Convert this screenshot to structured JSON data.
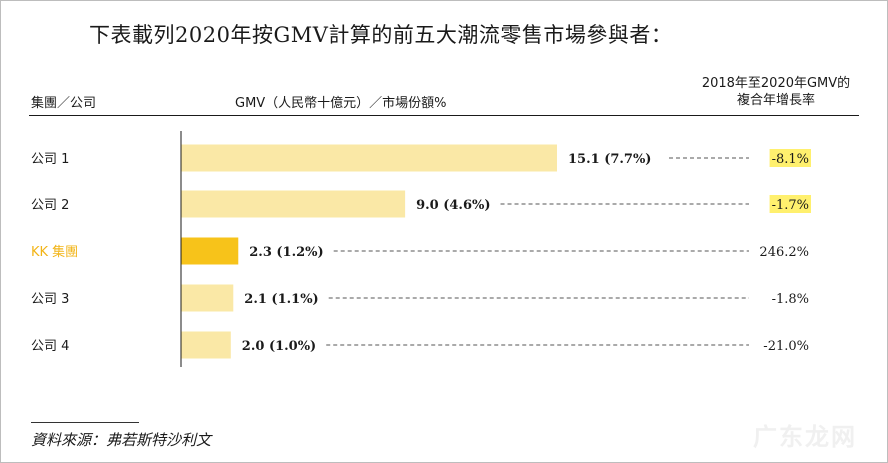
{
  "title": "下表載列2020年按GMV計算的前五大潮流零售市場參與者：",
  "headers": {
    "group": "集團／公司",
    "gmv": "GMV（人民幣十億元）／市場份額%",
    "cagr_line1": "2018年至2020年GMV的",
    "cagr_line2": "複合年增長率"
  },
  "colors": {
    "bar": "#fae8a6",
    "bar_highlight": "#f7c31a",
    "highlight_label": "#f2b417",
    "cagr_highlight_bg": "#fff06e"
  },
  "chart_data": {
    "type": "bar",
    "orientation": "horizontal",
    "categories": [
      "公司 1",
      "公司 2",
      "KK 集團",
      "公司 3",
      "公司 4"
    ],
    "values": [
      15.1,
      9.0,
      2.3,
      2.1,
      2.0
    ],
    "labels": [
      "15.1 (7.7%)",
      "9.0 (4.6%)",
      "2.3 (1.2%)",
      "2.1 (1.1%)",
      "2.0 (1.0%)"
    ],
    "cagr": [
      "-8.1%",
      "-1.7%",
      "246.2%",
      "-1.8%",
      "-21.0%"
    ],
    "highlight_index": 2,
    "cagr_highlighted": [
      true,
      true,
      false,
      false,
      false
    ]
  },
  "source": "資料來源：弗若斯特沙利文",
  "watermark": "广东龙网"
}
